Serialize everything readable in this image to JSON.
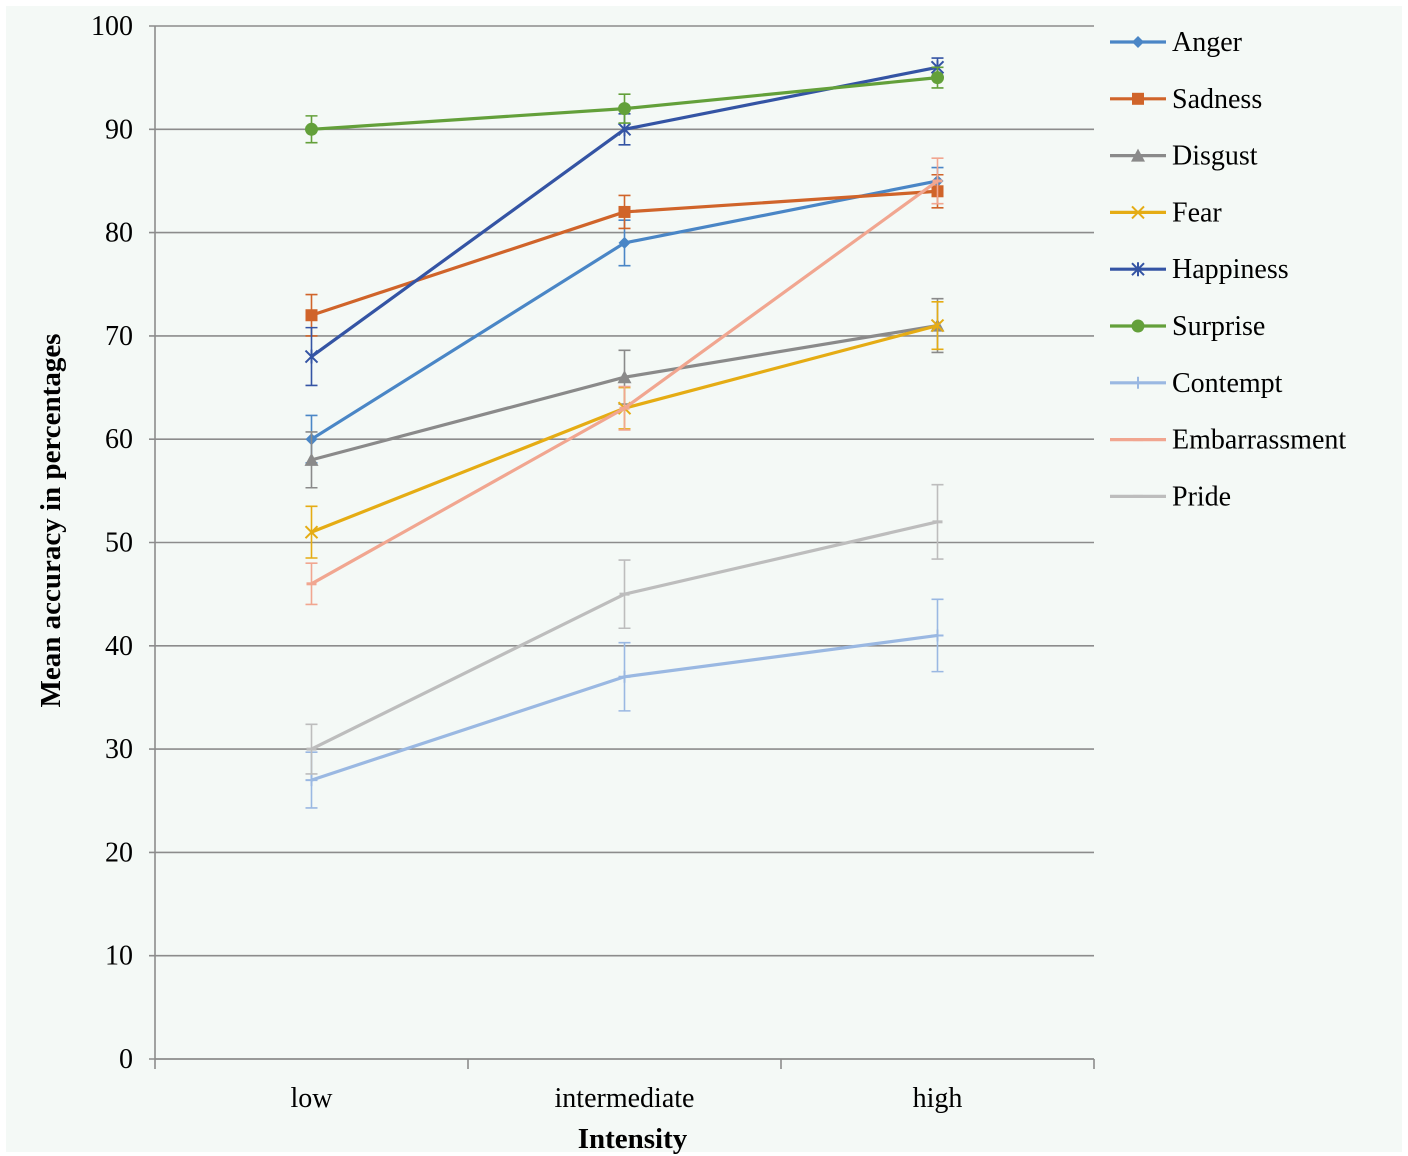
{
  "chart_data": {
    "type": "line",
    "title": "",
    "xlabel": "Intensity",
    "ylabel": "Mean accuracy in percentages",
    "categories": [
      "low",
      "intermediate",
      "high"
    ],
    "ylim": [
      0,
      100
    ],
    "yticks": [
      0,
      10,
      20,
      30,
      40,
      50,
      60,
      70,
      80,
      90,
      100
    ],
    "grid": true,
    "legend_position": "right",
    "error_bars": true,
    "series": [
      {
        "name": "Anger",
        "color": "#4a86c6",
        "marker": "diamond",
        "values": [
          60,
          79,
          85
        ],
        "errors": [
          2.3,
          2.2,
          1.3
        ]
      },
      {
        "name": "Sadness",
        "color": "#d0642a",
        "marker": "square",
        "values": [
          72,
          82,
          84
        ],
        "errors": [
          2.0,
          1.6,
          1.6
        ]
      },
      {
        "name": "Disgust",
        "color": "#8a8a8a",
        "marker": "triangle",
        "values": [
          58,
          66,
          71
        ],
        "errors": [
          2.7,
          2.6,
          2.6
        ]
      },
      {
        "name": "Fear",
        "color": "#e5ac14",
        "marker": "x",
        "values": [
          51,
          63,
          71
        ],
        "errors": [
          2.5,
          2.0,
          2.3
        ]
      },
      {
        "name": "Happiness",
        "color": "#3454a4",
        "marker": "star",
        "values": [
          68,
          90,
          96
        ],
        "errors": [
          2.8,
          1.5,
          0.9
        ]
      },
      {
        "name": "Surprise",
        "color": "#63a03a",
        "marker": "circle",
        "values": [
          90,
          92,
          95
        ],
        "errors": [
          1.3,
          1.4,
          1.0
        ]
      },
      {
        "name": "Contempt",
        "color": "#9ab8e2",
        "marker": "plus",
        "values": [
          27,
          37,
          41
        ],
        "errors": [
          2.7,
          3.3,
          3.5
        ]
      },
      {
        "name": "Embarrassment",
        "color": "#f1a690",
        "marker": "dash",
        "values": [
          46,
          63,
          85
        ],
        "errors": [
          2.0,
          2.1,
          2.2
        ]
      },
      {
        "name": "Pride",
        "color": "#bdbdbd",
        "marker": "dash",
        "values": [
          30,
          45,
          52
        ],
        "errors": [
          2.4,
          3.3,
          3.6
        ]
      }
    ]
  }
}
